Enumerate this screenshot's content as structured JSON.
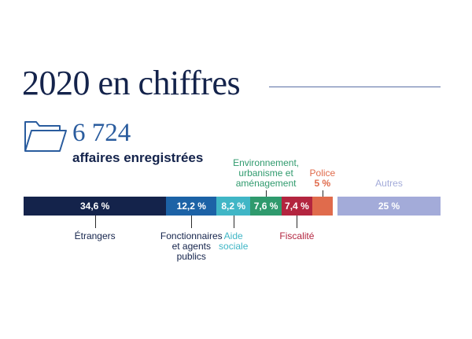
{
  "header": {
    "title": "2020 en chiffres",
    "total_number": "6 724",
    "total_label": "affaires enregistrées"
  },
  "chart_data": {
    "type": "bar",
    "orientation": "horizontal-stacked",
    "title": "2020 en chiffres",
    "unit": "%",
    "segments": [
      {
        "name": "Étrangers",
        "value": 34.6,
        "display": "34,6 %",
        "color": "#14234b",
        "label_position": "below",
        "label_lines": [
          "Étrangers"
        ],
        "label_color": "#14234b"
      },
      {
        "name": "Fonctionnaires et agents publics",
        "value": 12.2,
        "display": "12,2 %",
        "color": "#1c62a6",
        "label_position": "below",
        "label_lines": [
          "Fonctionnaires",
          "et agents",
          "publics"
        ],
        "label_color": "#14234b"
      },
      {
        "name": "Aide sociale",
        "value": 8.2,
        "display": "8,2 %",
        "color": "#40b6c6",
        "label_position": "below",
        "label_lines": [
          "Aide",
          "sociale"
        ],
        "label_color": "#40b6c6"
      },
      {
        "name": "Environnement, urbanisme et aménagement",
        "value": 7.6,
        "display": "7,6 %",
        "color": "#2f9a6d",
        "label_position": "above",
        "label_lines": [
          "Environnement,",
          "urbanisme et",
          "aménagement"
        ],
        "label_color": "#2f9a6d"
      },
      {
        "name": "Fiscalité",
        "value": 7.4,
        "display": "7,4 %",
        "color": "#b3253f",
        "label_position": "below",
        "label_lines": [
          "Fiscalité"
        ],
        "label_color": "#b3253f"
      },
      {
        "name": "Police",
        "value": 5,
        "display": "5 %",
        "color": "#e06b4c",
        "label_position": "above",
        "label_lines": [
          "Police"
        ],
        "value_in_label": true,
        "label_color": "#e06b4c",
        "show_in_bar": false
      },
      {
        "name": "Autres",
        "value": 25,
        "display": "25 %",
        "color": "#a3abd9",
        "label_position": "above",
        "label_lines": [
          "Autres"
        ],
        "label_color": "#a3abd9",
        "gap_before": true
      }
    ]
  },
  "colors": {
    "navy": "#14234b",
    "accent_blue": "#2a5c9e"
  },
  "icons": {
    "folder": "folder-icon"
  }
}
